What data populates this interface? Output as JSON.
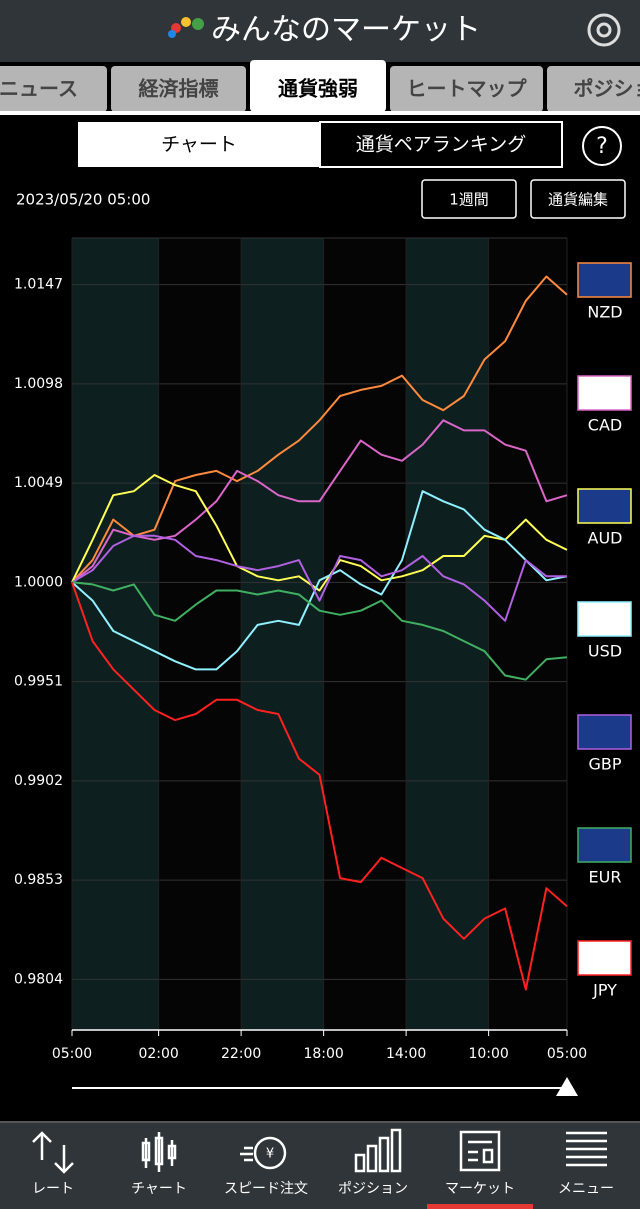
{
  "header": {
    "title": "みんなのマーケット"
  },
  "tabs": [
    "ニュース",
    "経済指標",
    "通貨強弱",
    "ヒートマップ",
    "ポジション"
  ],
  "segments": [
    "チャート",
    "通貨ペアランキング"
  ],
  "help": "?",
  "toolbar": {
    "date": "2023/05/20 05:00",
    "buttons": [
      "1週間",
      "通貨編集"
    ]
  },
  "chart_data": {
    "type": "line",
    "x": [
      0,
      5,
      10,
      15,
      20,
      25,
      30,
      35,
      40,
      45,
      50,
      55,
      60,
      65,
      70,
      75,
      80,
      85,
      90,
      95,
      100,
      105,
      110,
      115,
      120
    ],
    "xlim": [
      0,
      120
    ],
    "xticks": [
      {
        "value": 0,
        "label": "05:00"
      },
      {
        "value": 21,
        "label": "02:00"
      },
      {
        "value": 41,
        "label": "22:00"
      },
      {
        "value": 61,
        "label": "18:00"
      },
      {
        "value": 81,
        "label": "14:00"
      },
      {
        "value": 101,
        "label": "10:00"
      },
      {
        "value": 120,
        "label": "05:00"
      }
    ],
    "ylim": [
      0.9779,
      1.017
    ],
    "yticks": [
      1.0147,
      1.0098,
      1.0049,
      {
        "value": 1,
        "label": "1.0000"
      },
      0.9951,
      0.9902,
      0.9853,
      0.9804
    ],
    "grid": true,
    "series": [
      {
        "name": "NZD",
        "color": "#ff8a3d",
        "values": [
          1,
          1.0011,
          1.0031,
          1.0023,
          1.0026,
          1.005,
          1.0053,
          1.0055,
          1.005,
          1.0055,
          1.0063,
          1.007,
          1.008,
          1.0092,
          1.0095,
          1.0097,
          1.0102,
          1.009,
          1.0085,
          1.0092,
          1.011,
          1.0119,
          1.0139,
          1.0151,
          1.0142
        ]
      },
      {
        "name": "CAD",
        "color": "#d966c8",
        "values": [
          1,
          1.0008,
          1.0026,
          1.0023,
          1.0021,
          1.0023,
          1.0031,
          1.004,
          1.0055,
          1.005,
          1.0043,
          1.004,
          1.004,
          1.0055,
          1.007,
          1.0063,
          1.006,
          1.0068,
          1.008,
          1.0075,
          1.0075,
          1.0068,
          1.0065,
          1.004,
          1.0043
        ]
      },
      {
        "name": "AUD",
        "color": "#ffff55",
        "values": [
          1,
          1.0021,
          1.0043,
          1.0045,
          1.0053,
          1.0048,
          1.0045,
          1.0028,
          1.0008,
          1.0003,
          1.0001,
          1.0003,
          0.9996,
          1.0011,
          1.0008,
          1.0001,
          1.0003,
          1.0006,
          1.0013,
          1.0013,
          1.0023,
          1.0021,
          1.0031,
          1.0021,
          1.0016
        ]
      },
      {
        "name": "USD",
        "color": "#8ff0ff",
        "values": [
          1,
          0.9991,
          0.9976,
          0.9971,
          0.9966,
          0.9961,
          0.9957,
          0.9957,
          0.9966,
          0.9979,
          0.9981,
          0.9979,
          1.0001,
          1.0006,
          0.9999,
          0.9994,
          1.0011,
          1.0045,
          1.004,
          1.0036,
          1.0026,
          1.0021,
          1.0011,
          1.0001,
          1.0003
        ]
      },
      {
        "name": "GBP",
        "color": "#b060e0",
        "values": [
          1,
          1.0006,
          1.0018,
          1.0023,
          1.0023,
          1.0021,
          1.0013,
          1.0011,
          1.0008,
          1.0006,
          1.0008,
          1.0011,
          0.9991,
          1.0013,
          1.0011,
          1.0003,
          1.0006,
          1.0013,
          1.0003,
          0.9999,
          0.9991,
          0.9981,
          1.0011,
          1.0003,
          1.0003
        ]
      },
      {
        "name": "EUR",
        "color": "#40b060",
        "values": [
          1,
          0.9999,
          0.9996,
          0.9999,
          0.9984,
          0.9981,
          0.9989,
          0.9996,
          0.9996,
          0.9994,
          0.9996,
          0.9994,
          0.9986,
          0.9984,
          0.9986,
          0.9991,
          0.9981,
          0.9979,
          0.9976,
          0.9971,
          0.9966,
          0.9954,
          0.9952,
          0.9962,
          0.9963
        ]
      },
      {
        "name": "JPY",
        "color": "#ff2020",
        "values": [
          1,
          0.9971,
          0.9957,
          0.9947,
          0.9937,
          0.9932,
          0.9935,
          0.9942,
          0.9942,
          0.9937,
          0.9935,
          0.9913,
          0.9905,
          0.9854,
          0.9852,
          0.9864,
          0.9859,
          0.9854,
          0.9834,
          0.9824,
          0.9834,
          0.9839,
          0.9799,
          0.9849,
          0.984
        ]
      }
    ]
  },
  "nav": [
    "レート",
    "チャート",
    "スピード注文",
    "ポジション",
    "マーケット",
    "メニュー"
  ]
}
